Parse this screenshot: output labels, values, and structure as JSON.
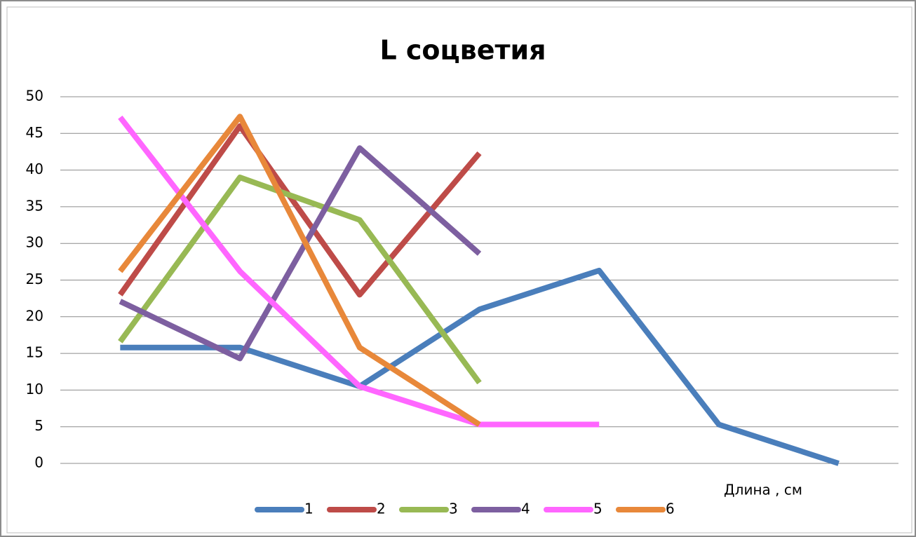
{
  "chart_data": {
    "type": "line",
    "title": "L соцветия",
    "x_label": "Длина , см",
    "categories": [
      null,
      null,
      null,
      null,
      null,
      null,
      null
    ],
    "ylim": [
      0,
      50
    ],
    "yticks": [
      0,
      5,
      10,
      15,
      20,
      25,
      30,
      35,
      40,
      45,
      50
    ],
    "grid": true,
    "legend": "bottom",
    "series": [
      {
        "name": "1",
        "color": "#4a7ebb",
        "values": [
          15.8,
          15.8,
          10.5,
          21,
          26.3,
          5.3,
          0
        ]
      },
      {
        "name": "2",
        "color": "#be4b48",
        "values": [
          23,
          46,
          23,
          42.3,
          null,
          null,
          null
        ]
      },
      {
        "name": "3",
        "color": "#98b954",
        "values": [
          16.6,
          39,
          33.2,
          11,
          null,
          null,
          null
        ]
      },
      {
        "name": "4",
        "color": "#7d5fa0",
        "values": [
          22.1,
          14.3,
          43,
          28.6,
          null,
          null,
          null
        ]
      },
      {
        "name": "5",
        "color": "#ff66ff",
        "values": [
          47.2,
          26.2,
          10.5,
          5.3,
          5.3,
          null,
          null
        ]
      },
      {
        "name": "6",
        "color": "#e8883a",
        "values": [
          26.2,
          47.3,
          15.8,
          5.3,
          null,
          null,
          null
        ]
      }
    ]
  }
}
